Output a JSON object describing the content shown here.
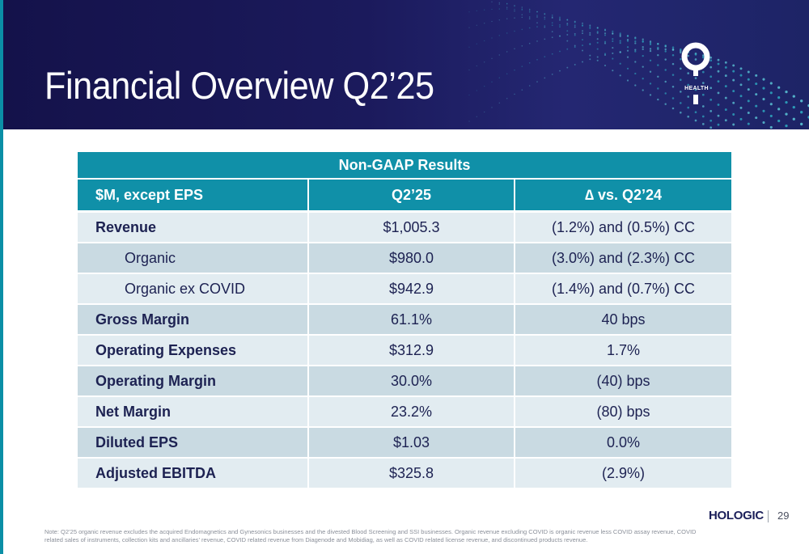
{
  "header": {
    "title": "Financial Overview Q2’25",
    "logo_text": "HEALTH"
  },
  "table": {
    "banner": "Non-GAAP Results",
    "columns": [
      "$M, except EPS",
      "Q2’25",
      "∆ vs. Q2’24"
    ],
    "rows": [
      {
        "label": "Revenue",
        "value": "$1,005.3",
        "delta": "(1.2%) and (0.5%) CC"
      },
      {
        "label": "Organic",
        "value": "$980.0",
        "delta": "(3.0%) and (2.3%) CC"
      },
      {
        "label": "Organic ex COVID",
        "value": "$942.9",
        "delta": "(1.4%) and (0.7%) CC"
      },
      {
        "label": "Gross Margin",
        "value": "61.1%",
        "delta": "40 bps"
      },
      {
        "label": "Operating Expenses",
        "value": "$312.9",
        "delta": "1.7%"
      },
      {
        "label": "Operating Margin",
        "value": "30.0%",
        "delta": "(40) bps"
      },
      {
        "label": "Net Margin",
        "value": "23.2%",
        "delta": "(80) bps"
      },
      {
        "label": "Diluted EPS",
        "value": "$1.03",
        "delta": "0.0%"
      },
      {
        "label": "Adjusted EBITDA",
        "value": "$325.8",
        "delta": "(2.9%)"
      }
    ]
  },
  "footer": {
    "note": "Note: Q2’25 organic revenue excludes the acquired Endomagnetics and Gynesonics businesses and the divested Blood Screening and SSI businesses. Organic revenue excluding COVID is organic revenue less COVID assay revenue, COVID related sales of instruments, collection kits and ancillaries’ revenue, COVID related revenue from Diagenode and Mobidiag, as well as COVID related license revenue, and discontinued products revenue.",
    "brand": "HOLOGIC",
    "page_number": "29"
  },
  "colors": {
    "banner_bg": "#1b1a5c",
    "table_header": "#1090a8",
    "row_light": "#e2ecf1",
    "row_dark": "#c9dae2",
    "text_navy": "#1d2252"
  },
  "icons": [
    "health-logo-icon",
    "dot-wave-decoration"
  ]
}
